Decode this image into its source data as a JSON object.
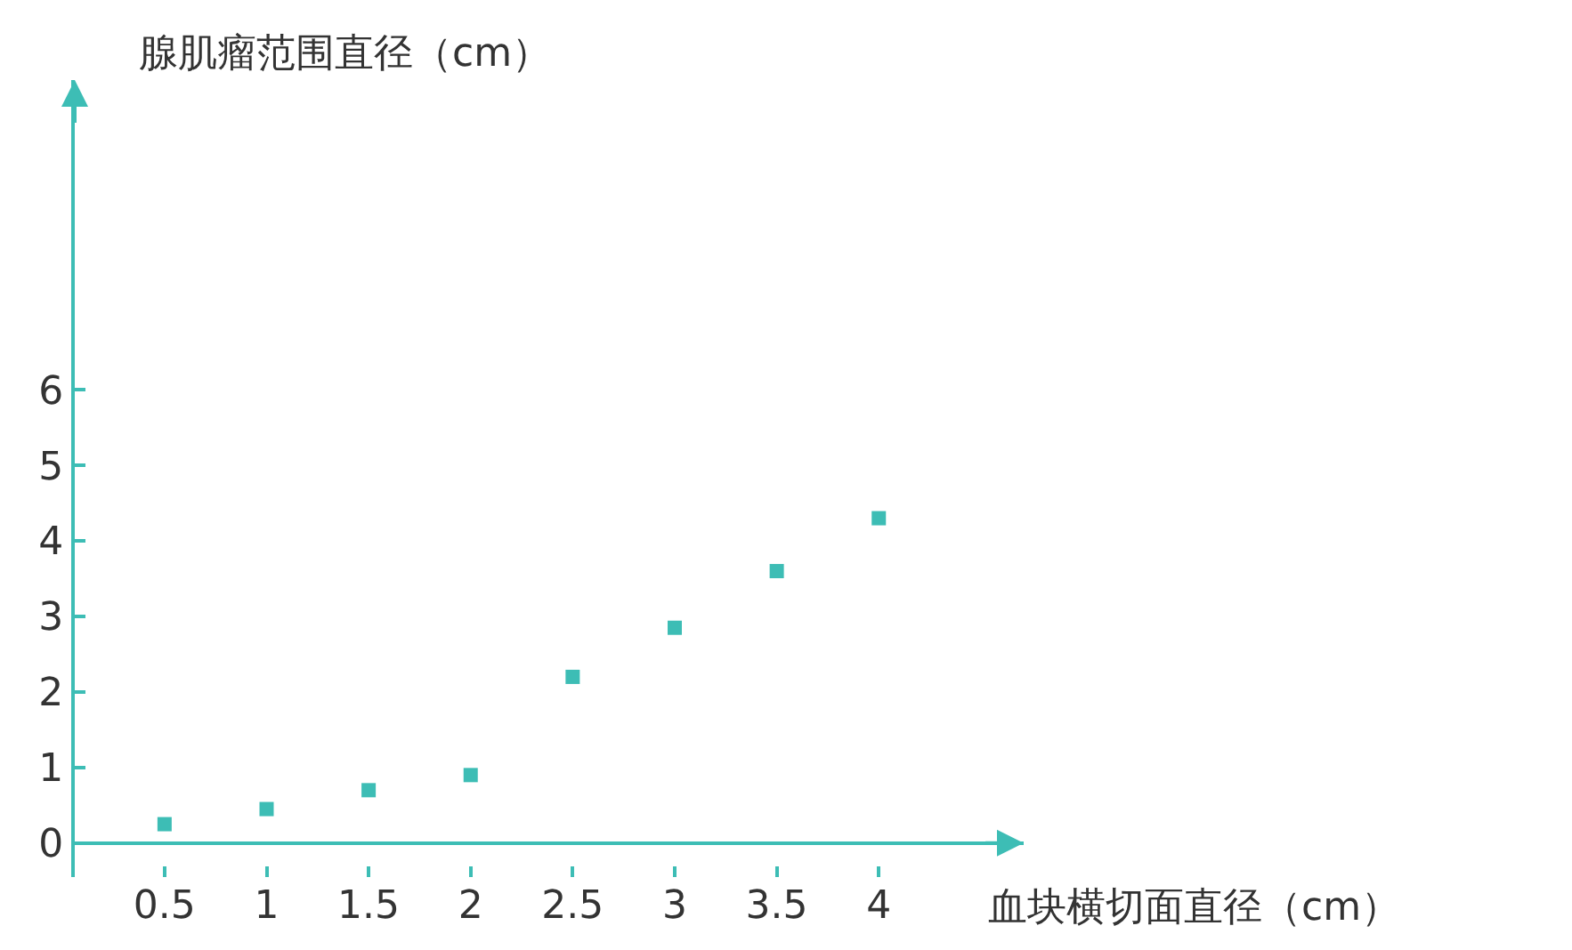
{
  "chart_data": {
    "type": "scatter",
    "xlabel": "血块横切面直径（cm）",
    "ylabel": "腺肌瘤范围直径（cm）",
    "x": [
      0.5,
      1,
      1.5,
      2,
      2.5,
      3,
      3.5,
      4
    ],
    "series": [
      {
        "color": "#3dbdb5",
        "values": [
          0.25,
          0.45,
          0.7,
          0.9,
          2.2,
          2.85,
          3.6,
          4.3
        ]
      }
    ],
    "xlim": [
      0.06,
      4.71
    ],
    "ylim": [
      -0.45,
      10.1
    ],
    "xticks": [
      0.5,
      1,
      1.5,
      2,
      2.5,
      3,
      3.5,
      4
    ],
    "yticks": [
      0,
      1,
      2,
      3,
      4,
      5,
      6
    ],
    "marker": "square"
  }
}
